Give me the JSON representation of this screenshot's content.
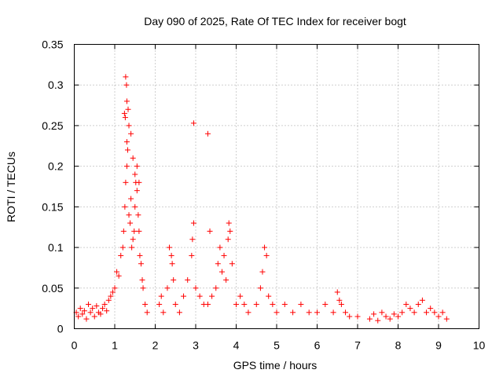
{
  "chart_data": {
    "type": "scatter",
    "title": "Day 090 of 2025, Rate Of TEC Index for receiver bogt",
    "xlabel": "GPS time / hours",
    "ylabel": "ROTI / TECUs",
    "xlim": [
      0,
      10
    ],
    "ylim": [
      0,
      0.35
    ],
    "x_ticks": [
      "0",
      "1",
      "2",
      "3",
      "4",
      "5",
      "6",
      "7",
      "8",
      "9",
      "10"
    ],
    "y_ticks": [
      "0",
      "0.05",
      "0.1",
      "0.15",
      "0.2",
      "0.25",
      "0.3",
      "0.35"
    ],
    "x_tick_values": [
      0,
      1,
      2,
      3,
      4,
      5,
      6,
      7,
      8,
      9,
      10
    ],
    "y_tick_values": [
      0,
      0.05,
      0.1,
      0.15,
      0.2,
      0.25,
      0.3,
      0.35
    ],
    "grid": true,
    "marker": "+",
    "marker_color": "#ff0000",
    "series": [
      {
        "name": "ROTI",
        "x": [
          0.05,
          0.1,
          0.15,
          0.2,
          0.25,
          0.3,
          0.35,
          0.4,
          0.45,
          0.5,
          0.55,
          0.6,
          0.65,
          0.7,
          0.75,
          0.8,
          0.85,
          0.9,
          0.95,
          1.0,
          1.05,
          1.1,
          1.15,
          1.2,
          1.22,
          1.25,
          1.27,
          1.3,
          1.32,
          1.35,
          1.38,
          1.4,
          1.42,
          1.45,
          1.48,
          1.5,
          1.52,
          1.55,
          1.58,
          1.6,
          1.62,
          1.65,
          1.68,
          1.7,
          1.75,
          1.8,
          2.1,
          2.15,
          2.2,
          2.3,
          2.35,
          2.4,
          2.42,
          2.45,
          2.5,
          2.6,
          2.7,
          2.8,
          2.9,
          2.92,
          2.95,
          3.0,
          3.1,
          3.2,
          3.3,
          3.35,
          3.4,
          3.5,
          3.55,
          3.6,
          3.65,
          3.7,
          3.75,
          3.8,
          3.82,
          3.85,
          3.9,
          4.0,
          4.1,
          4.2,
          4.3,
          4.5,
          4.6,
          4.65,
          4.7,
          4.75,
          4.8,
          4.9,
          5.0,
          5.2,
          5.4,
          5.6,
          5.8,
          6.0,
          6.2,
          6.4,
          6.5,
          6.55,
          6.6,
          6.7,
          6.8,
          7.0,
          7.3,
          7.4,
          7.5,
          7.6,
          7.7,
          7.8,
          7.9,
          8.0,
          8.1,
          8.2,
          8.3,
          8.4,
          8.5,
          8.6,
          8.7,
          8.8,
          8.9,
          9.0,
          9.1,
          9.2,
          1.27,
          1.29,
          1.3,
          1.33,
          1.24,
          1.26,
          1.4,
          1.45,
          1.5,
          1.55,
          1.6,
          1.3,
          1.35,
          2.95,
          3.3
        ],
        "y": [
          0.02,
          0.015,
          0.025,
          0.018,
          0.022,
          0.012,
          0.03,
          0.02,
          0.025,
          0.015,
          0.028,
          0.02,
          0.018,
          0.025,
          0.03,
          0.022,
          0.035,
          0.04,
          0.045,
          0.05,
          0.07,
          0.065,
          0.09,
          0.1,
          0.12,
          0.15,
          0.18,
          0.2,
          0.22,
          0.14,
          0.13,
          0.16,
          0.1,
          0.11,
          0.12,
          0.15,
          0.18,
          0.17,
          0.14,
          0.12,
          0.09,
          0.08,
          0.06,
          0.05,
          0.03,
          0.02,
          0.03,
          0.04,
          0.02,
          0.05,
          0.1,
          0.09,
          0.08,
          0.06,
          0.03,
          0.02,
          0.04,
          0.06,
          0.09,
          0.11,
          0.13,
          0.05,
          0.04,
          0.03,
          0.03,
          0.12,
          0.04,
          0.05,
          0.08,
          0.1,
          0.07,
          0.09,
          0.06,
          0.11,
          0.13,
          0.12,
          0.08,
          0.03,
          0.04,
          0.03,
          0.02,
          0.03,
          0.05,
          0.07,
          0.1,
          0.09,
          0.04,
          0.03,
          0.02,
          0.03,
          0.02,
          0.03,
          0.02,
          0.02,
          0.03,
          0.02,
          0.045,
          0.035,
          0.03,
          0.02,
          0.015,
          0.015,
          0.012,
          0.018,
          0.01,
          0.02,
          0.015,
          0.012,
          0.018,
          0.015,
          0.02,
          0.03,
          0.025,
          0.02,
          0.03,
          0.035,
          0.02,
          0.025,
          0.02,
          0.015,
          0.02,
          0.012,
          0.31,
          0.3,
          0.28,
          0.27,
          0.265,
          0.26,
          0.24,
          0.21,
          0.19,
          0.2,
          0.18,
          0.23,
          0.25,
          0.253,
          0.24
        ]
      }
    ]
  }
}
